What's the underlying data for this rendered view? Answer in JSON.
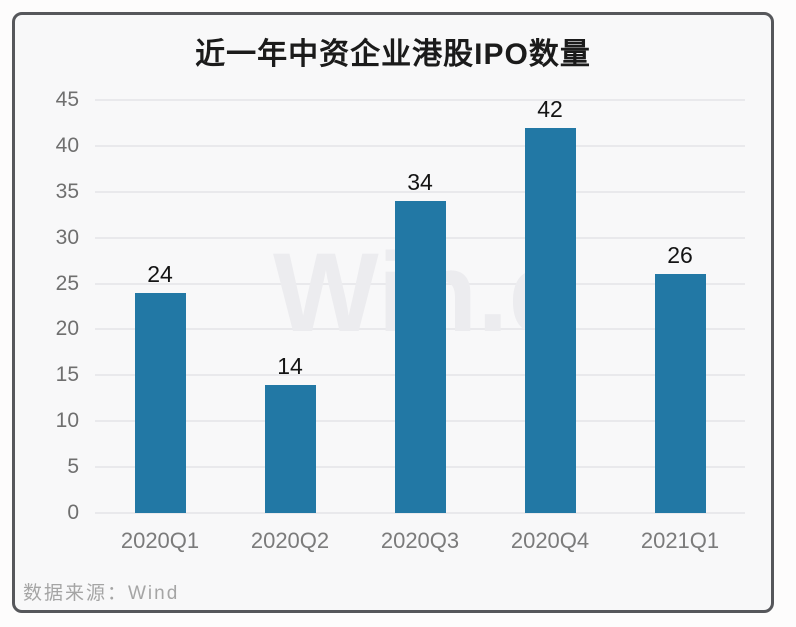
{
  "chart_data": {
    "type": "bar",
    "title": "近一年中资企业港股IPO数量",
    "categories": [
      "2020Q1",
      "2020Q2",
      "2020Q3",
      "2020Q4",
      "2021Q1"
    ],
    "values": [
      24,
      14,
      34,
      42,
      26
    ],
    "xlabel": "",
    "ylabel": "",
    "ylim": [
      0,
      45
    ],
    "yticks": [
      0,
      5,
      10,
      15,
      20,
      25,
      30,
      35,
      40,
      45
    ],
    "grid": true,
    "legend": "none",
    "bar_color": "#2278a5",
    "watermark_text": "Win.d"
  },
  "footer": {
    "source_label": "数据来源：Wind"
  },
  "colors": {
    "card_background": "#f8f8f9",
    "card_border": "#56575b",
    "gridline": "#e9e9ec",
    "title_text": "#1b1b1b",
    "axis_text": "#6f6f6f",
    "value_text": "#141414",
    "footer_text": "#a5a5a5",
    "watermark": "#ececef"
  }
}
